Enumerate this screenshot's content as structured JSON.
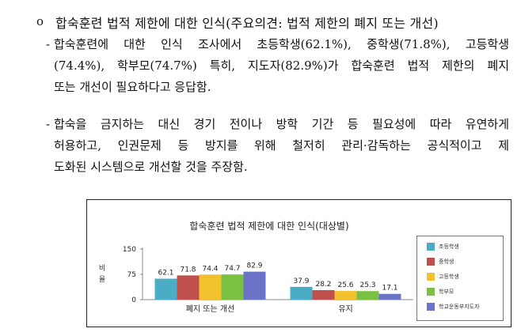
{
  "heading": {
    "bullet": "o",
    "text": "합숙훈련 법적 제한에 대한 인식(주요의견: 법적 제한의 폐지 또는 개선)"
  },
  "paragraphs": [
    {
      "dash": "-",
      "lines": [
        "합숙훈련에 대한 인식 조사에서 초등학생(62.1%), 중학생(71.8%), 고등학생",
        "(74.4%), 학부모(74.7%) 특히, 지도자(82.9%)가 합숙훈련 법적 제한의 폐지",
        "또는 개선이 필요하다고 응답함."
      ]
    },
    {
      "dash": "-",
      "lines": [
        "합숙을 금지하는 대신 경기 전이나 방학 기간 등 필요성에 따라 유연하게",
        "허용하고, 인권문제 등 방지를 위해 철저히 관리·감독하는 공식적이고 제",
        "도화된 시스템으로 개선할 것을 주장함."
      ]
    }
  ],
  "chart_data": {
    "type": "bar",
    "title": "합숙훈련 법적 제한에 대한 인식(대상별)",
    "ylabel": "비율",
    "xlabel": "",
    "ylim": [
      0,
      150
    ],
    "yticks": [
      0,
      75,
      150
    ],
    "categories": [
      "폐지 또는 개선",
      "유지"
    ],
    "legend_position": "right",
    "series": [
      {
        "name": "초등학생",
        "color": "#4BACC6",
        "values": [
          62.1,
          37.9
        ]
      },
      {
        "name": "중학생",
        "color": "#C0504D",
        "values": [
          71.8,
          28.2
        ]
      },
      {
        "name": "고등학생",
        "color": "#F2C12E",
        "values": [
          74.4,
          25.6
        ]
      },
      {
        "name": "학부모",
        "color": "#7AC143",
        "values": [
          74.7,
          25.3
        ]
      },
      {
        "name": "학교운동부지도자",
        "color": "#6A73C8",
        "values": [
          82.9,
          17.1
        ]
      }
    ]
  }
}
